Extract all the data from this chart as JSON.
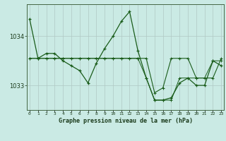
{
  "title": "Graphe pression niveau de la mer (hPa)",
  "bg_color": "#caeae4",
  "plot_bg_color": "#caeae4",
  "grid_color": "#b0c8c4",
  "line_color": "#1a5c1a",
  "x_labels": [
    "0",
    "1",
    "2",
    "3",
    "4",
    "5",
    "6",
    "7",
    "8",
    "9",
    "10",
    "11",
    "12",
    "13",
    "14",
    "15",
    "16",
    "17",
    "18",
    "19",
    "20",
    "21",
    "22",
    "23"
  ],
  "yticks": [
    1033,
    1034
  ],
  "ylim": [
    1032.5,
    1034.65
  ],
  "xlim": [
    -0.3,
    23.3
  ],
  "series1": [
    1034.35,
    1033.55,
    1033.65,
    1033.65,
    1033.5,
    1033.4,
    1033.3,
    1033.05,
    1033.45,
    1033.75,
    1034.0,
    1034.3,
    1034.5,
    1033.7,
    1033.15,
    1032.7,
    1032.7,
    1032.75,
    1033.05,
    1033.15,
    1033.0,
    1033.0,
    1033.5,
    1033.4
  ],
  "series2": [
    1033.55,
    1033.55,
    1033.55,
    1033.55,
    1033.55,
    1033.55,
    1033.55,
    1033.55,
    1033.55,
    1033.55,
    1033.55,
    1033.55,
    1033.55,
    1033.55,
    1033.55,
    1032.85,
    1032.95,
    1033.55,
    1033.55,
    1033.55,
    1033.15,
    1033.15,
    1033.15,
    1033.55
  ],
  "series3": [
    1033.55,
    1033.55,
    1033.55,
    1033.55,
    1033.55,
    1033.55,
    1033.55,
    1033.55,
    1033.55,
    1033.55,
    1033.55,
    1033.55,
    1033.55,
    1033.55,
    1033.15,
    1032.7,
    1032.7,
    1032.7,
    1033.15,
    1033.15,
    1033.15,
    1033.15,
    1033.5,
    1033.5
  ]
}
